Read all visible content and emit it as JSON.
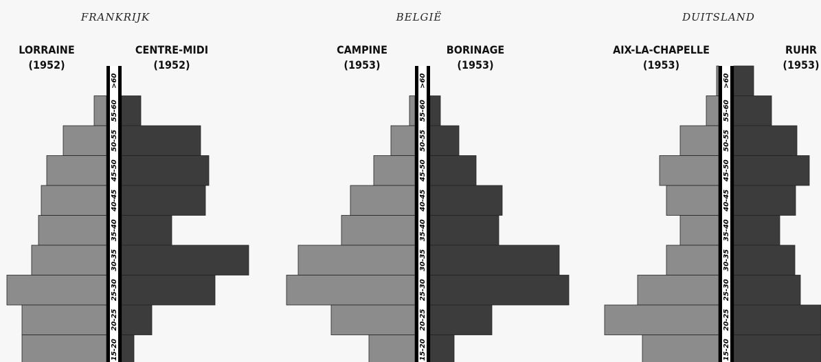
{
  "chart_data": [
    {
      "type": "pyramid",
      "title": "FRANKRIJK",
      "categories": [
        ">60",
        "55-60",
        "50-55",
        "45-50",
        "40-45",
        "35-40",
        "30-35",
        "25-30",
        "20-25",
        "15-20"
      ],
      "series": [
        {
          "name": "LORRAINE (1952)",
          "color": "#8c8c8c",
          "side": "left",
          "values": [
            0,
            18,
            63,
            87,
            95,
            99,
            109,
            145,
            123,
            123
          ]
        },
        {
          "name": "CENTRE-MIDI (1952)",
          "color": "#3c3c3c",
          "side": "right",
          "values": [
            0,
            28,
            115,
            127,
            122,
            73,
            185,
            136,
            44,
            18
          ]
        }
      ]
    },
    {
      "type": "pyramid",
      "title": "BELGIË",
      "categories": [
        ">60",
        "55-60",
        "50-55",
        "45-50",
        "40-45",
        "35-40",
        "30-35",
        "25-30",
        "20-25",
        "15-20"
      ],
      "series": [
        {
          "name": "CAMPINE (1953)",
          "color": "#8c8c8c",
          "side": "left",
          "values": [
            0,
            8,
            35,
            60,
            94,
            107,
            170,
            187,
            122,
            67
          ]
        },
        {
          "name": "BORINAGE (1953)",
          "color": "#3c3c3c",
          "side": "right",
          "values": [
            0,
            15,
            42,
            67,
            105,
            100,
            188,
            202,
            90,
            35
          ]
        }
      ]
    },
    {
      "type": "pyramid",
      "title": "DUITSLAND",
      "categories": [
        ">60",
        "55-60",
        "50-55",
        "45-50",
        "40-45",
        "35-40",
        "30-35",
        "25-30",
        "20-25",
        "15-20"
      ],
      "series": [
        {
          "name": "AIX-LA-CHAPELLE (1953)",
          "color": "#8c8c8c",
          "side": "left",
          "values": [
            3,
            18,
            56,
            86,
            76,
            56,
            76,
            118,
            166,
            111
          ]
        },
        {
          "name": "RUHR (1953)",
          "color": "#3c3c3c",
          "side": "right",
          "values": [
            29,
            55,
            92,
            110,
            90,
            67,
            89,
            97,
            127,
            127
          ]
        }
      ]
    }
  ]
}
